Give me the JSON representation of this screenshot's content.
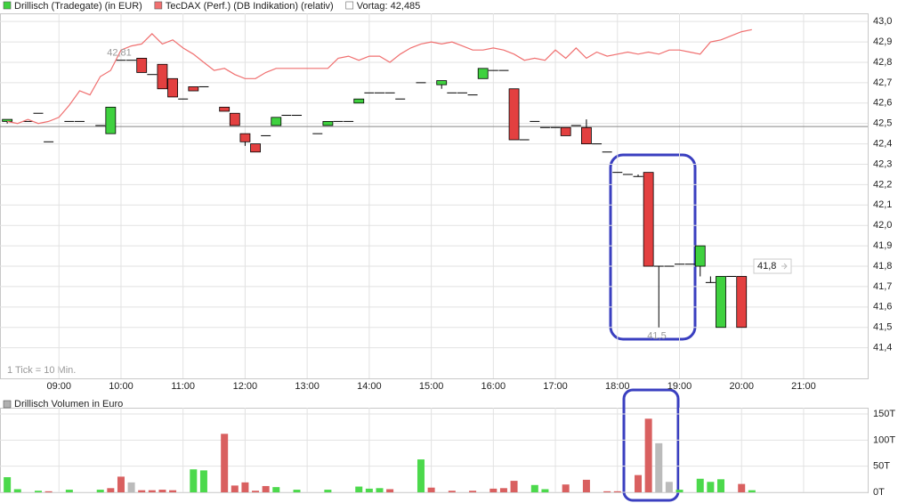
{
  "chart_data": [
    {
      "type": "candlestick",
      "note": "1 Tick = 10 Min.",
      "xlim": [
        483,
        1322
      ],
      "xticks": [
        {
          "value": 540,
          "label": "09:00"
        },
        {
          "value": 600,
          "label": "10:00"
        },
        {
          "value": 660,
          "label": "11:00"
        },
        {
          "value": 720,
          "label": "12:00"
        },
        {
          "value": 780,
          "label": "13:00"
        },
        {
          "value": 840,
          "label": "14:00"
        },
        {
          "value": 900,
          "label": "15:00"
        },
        {
          "value": 960,
          "label": "16:00"
        },
        {
          "value": 1020,
          "label": "17:00"
        },
        {
          "value": 1080,
          "label": "18:00"
        },
        {
          "value": 1140,
          "label": "19:00"
        },
        {
          "value": 1200,
          "label": "20:00"
        },
        {
          "value": 1260,
          "label": "21:00"
        }
      ],
      "ylim": [
        41.25,
        43.04
      ],
      "yticks": [
        {
          "value": 41.4,
          "label": "41,4"
        },
        {
          "value": 41.5,
          "label": "41,5"
        },
        {
          "value": 41.6,
          "label": "41,6"
        },
        {
          "value": 41.7,
          "label": "41,7"
        },
        {
          "value": 41.8,
          "label": "41,8"
        },
        {
          "value": 41.9,
          "label": "41,9"
        },
        {
          "value": 42.0,
          "label": "42,0"
        },
        {
          "value": 42.1,
          "label": "42,1"
        },
        {
          "value": 42.2,
          "label": "42,2"
        },
        {
          "value": 42.3,
          "label": "42,3"
        },
        {
          "value": 42.4,
          "label": "42,4"
        },
        {
          "value": 42.5,
          "label": "42,5"
        },
        {
          "value": 42.6,
          "label": "42,6"
        },
        {
          "value": 42.7,
          "label": "42,7"
        },
        {
          "value": 42.8,
          "label": "42,8"
        },
        {
          "value": 42.9,
          "label": "42,9"
        },
        {
          "value": 43.0,
          "label": "43,0"
        }
      ],
      "grid": true,
      "series": [
        {
          "name": "Drillisch (Tradegate) (in EUR)",
          "color": "#3fd13f",
          "up_color": "#3fd13f",
          "down_color": "#e34040",
          "x": [
            490,
            510,
            520,
            530,
            550,
            560,
            580,
            590,
            600,
            610,
            620,
            630,
            640,
            650,
            660,
            670,
            680,
            700,
            710,
            720,
            730,
            740,
            750,
            760,
            770,
            790,
            800,
            810,
            820,
            830,
            840,
            850,
            860,
            870,
            890,
            910,
            920,
            930,
            940,
            950,
            960,
            970,
            980,
            990,
            1000,
            1010,
            1020,
            1030,
            1040,
            1050,
            1060,
            1070,
            1080,
            1090,
            1100,
            1110,
            1120,
            1130,
            1140,
            1150,
            1160,
            1170,
            1180,
            1190,
            1200
          ],
          "open": [
            42.51,
            42.51,
            42.55,
            42.41,
            42.51,
            42.51,
            42.49,
            42.45,
            42.81,
            42.81,
            42.82,
            42.74,
            42.79,
            42.72,
            42.62,
            42.68,
            42.68,
            42.58,
            42.55,
            42.45,
            42.4,
            42.44,
            42.49,
            42.54,
            42.54,
            42.45,
            42.49,
            42.51,
            42.51,
            42.6,
            42.65,
            42.65,
            42.65,
            42.62,
            42.7,
            42.69,
            42.65,
            42.65,
            42.64,
            42.72,
            42.76,
            42.76,
            42.67,
            42.42,
            42.51,
            42.48,
            42.48,
            42.48,
            42.49,
            42.48,
            42.4,
            42.36,
            42.26,
            42.25,
            42.24,
            42.26,
            41.8,
            41.8,
            41.81,
            41.81,
            41.8,
            41.72,
            41.5,
            41.75,
            41.75
          ],
          "high": [
            42.52,
            42.51,
            42.55,
            42.41,
            42.51,
            42.51,
            42.49,
            42.58,
            42.81,
            42.81,
            42.82,
            42.74,
            42.79,
            42.72,
            42.62,
            42.68,
            42.68,
            42.58,
            42.55,
            42.45,
            42.4,
            42.44,
            42.53,
            42.54,
            42.54,
            42.45,
            42.51,
            42.51,
            42.51,
            42.62,
            42.65,
            42.65,
            42.65,
            42.62,
            42.7,
            42.71,
            42.65,
            42.65,
            42.64,
            42.77,
            42.76,
            42.76,
            42.67,
            42.42,
            42.51,
            42.48,
            42.48,
            42.48,
            42.49,
            42.52,
            42.4,
            42.36,
            42.26,
            42.25,
            42.25,
            42.26,
            41.8,
            41.8,
            41.81,
            41.81,
            41.9,
            41.75,
            41.75,
            41.75,
            41.75
          ],
          "low": [
            42.5,
            42.51,
            42.55,
            42.41,
            42.51,
            42.51,
            42.49,
            42.45,
            42.81,
            42.81,
            42.75,
            42.74,
            42.67,
            42.63,
            42.62,
            42.66,
            42.68,
            42.56,
            42.49,
            42.39,
            42.36,
            42.44,
            42.49,
            42.54,
            42.54,
            42.45,
            42.49,
            42.51,
            42.51,
            42.6,
            42.65,
            42.65,
            42.65,
            42.62,
            42.7,
            42.67,
            42.65,
            42.65,
            42.64,
            42.72,
            42.76,
            42.76,
            42.42,
            42.42,
            42.51,
            42.48,
            42.48,
            42.44,
            42.49,
            42.4,
            42.4,
            42.36,
            42.26,
            42.25,
            42.24,
            41.8,
            41.5,
            41.8,
            41.81,
            41.81,
            41.75,
            41.72,
            41.5,
            41.75,
            41.5
          ],
          "close": [
            42.52,
            42.51,
            42.55,
            42.41,
            42.51,
            42.51,
            42.49,
            42.58,
            42.81,
            42.81,
            42.75,
            42.74,
            42.67,
            42.63,
            42.62,
            42.66,
            42.68,
            42.56,
            42.49,
            42.41,
            42.36,
            42.44,
            42.53,
            42.54,
            42.54,
            42.45,
            42.51,
            42.51,
            42.51,
            42.62,
            42.65,
            42.65,
            42.65,
            42.62,
            42.7,
            42.71,
            42.65,
            42.65,
            42.64,
            42.77,
            42.76,
            42.76,
            42.42,
            42.42,
            42.51,
            42.48,
            42.48,
            42.44,
            42.49,
            42.4,
            42.4,
            42.36,
            42.26,
            42.25,
            42.24,
            41.8,
            41.8,
            41.8,
            41.81,
            41.81,
            41.9,
            41.72,
            41.75,
            41.75,
            41.5
          ]
        },
        {
          "name": "TecDAX (Perf.) (DB Indikation) (relativ)",
          "color": "#f07070",
          "type": "line",
          "x": [
            490,
            500,
            510,
            520,
            530,
            540,
            550,
            560,
            570,
            580,
            590,
            600,
            610,
            620,
            630,
            640,
            650,
            660,
            670,
            680,
            690,
            700,
            710,
            720,
            730,
            740,
            750,
            760,
            770,
            780,
            790,
            800,
            810,
            820,
            830,
            840,
            850,
            860,
            870,
            880,
            890,
            900,
            910,
            920,
            930,
            940,
            950,
            960,
            970,
            980,
            990,
            1000,
            1010,
            1020,
            1030,
            1040,
            1050,
            1060,
            1070,
            1080,
            1090,
            1100,
            1110,
            1120,
            1130,
            1140,
            1150,
            1160,
            1170,
            1180,
            1190,
            1200,
            1210
          ],
          "values": [
            42.51,
            42.5,
            42.52,
            42.5,
            42.51,
            42.53,
            42.59,
            42.66,
            42.64,
            42.73,
            42.76,
            42.86,
            42.88,
            42.89,
            42.94,
            42.89,
            42.91,
            42.87,
            42.84,
            42.8,
            42.76,
            42.77,
            42.74,
            42.72,
            42.72,
            42.75,
            42.77,
            42.77,
            42.77,
            42.77,
            42.77,
            42.77,
            42.82,
            42.83,
            42.81,
            42.83,
            42.83,
            42.8,
            42.84,
            42.87,
            42.89,
            42.9,
            42.89,
            42.9,
            42.88,
            42.86,
            42.86,
            42.87,
            42.86,
            42.84,
            42.81,
            42.82,
            42.81,
            42.86,
            42.82,
            42.87,
            42.82,
            42.85,
            42.83,
            42.84,
            42.85,
            42.84,
            42.85,
            42.84,
            42.86,
            42.86,
            42.85,
            42.84,
            42.9,
            42.91,
            42.93,
            42.95,
            42.96
          ]
        }
      ],
      "reference_line": {
        "value": 42.485,
        "label": "Vortag: 42,485",
        "color": "#888888"
      },
      "annotations": [
        {
          "value": 42.81,
          "label": "42,81"
        },
        {
          "value": 41.5,
          "label": "41,5"
        },
        {
          "value": 41.8,
          "label": "41,8"
        }
      ]
    },
    {
      "type": "bar",
      "title": "Drillisch Volumen in Euro",
      "title_color": "#b0b0b0",
      "xlim": [
        483,
        1322
      ],
      "ylim": [
        0,
        162
      ],
      "yticks": [
        {
          "value": 0,
          "label": "0T"
        },
        {
          "value": 50,
          "label": "50T"
        },
        {
          "value": 100,
          "label": "100T"
        },
        {
          "value": 150,
          "label": "150T"
        }
      ],
      "grid": true,
      "x": [
        490,
        500,
        520,
        530,
        550,
        580,
        590,
        600,
        610,
        620,
        630,
        640,
        650,
        670,
        680,
        700,
        710,
        720,
        730,
        740,
        750,
        770,
        800,
        830,
        840,
        850,
        860,
        890,
        900,
        920,
        940,
        960,
        970,
        980,
        1000,
        1010,
        1030,
        1050,
        1070,
        1080,
        1100,
        1110,
        1120,
        1130,
        1140,
        1160,
        1170,
        1180,
        1200,
        1210
      ],
      "values": [
        29,
        6,
        3,
        2,
        5,
        5,
        8,
        30,
        19,
        4,
        4,
        5,
        4,
        44,
        42,
        112,
        13,
        19,
        3,
        12,
        10,
        5,
        5,
        11,
        7,
        8,
        6,
        63,
        9,
        3,
        3,
        7,
        8,
        22,
        14,
        6,
        15,
        24,
        2,
        2,
        33,
        141,
        94,
        20,
        5,
        26,
        20,
        25,
        16,
        4
      ],
      "colors": [
        "#4cd94c",
        "#4cd94c",
        "#4cd94c",
        "#d96060",
        "#4cd94c",
        "#4cd94c",
        "#d96060",
        "#d96060",
        "#bbbbbb",
        "#d96060",
        "#d96060",
        "#d96060",
        "#d96060",
        "#4cd94c",
        "#4cd94c",
        "#d96060",
        "#d96060",
        "#d96060",
        "#d96060",
        "#d96060",
        "#4cd94c",
        "#4cd94c",
        "#4cd94c",
        "#4cd94c",
        "#4cd94c",
        "#4cd94c",
        "#d96060",
        "#4cd94c",
        "#d96060",
        "#d96060",
        "#d96060",
        "#d96060",
        "#d96060",
        "#d96060",
        "#4cd94c",
        "#4cd94c",
        "#d96060",
        "#d96060",
        "#d96060",
        "#d96060",
        "#d96060",
        "#d96060",
        "#bbbbbb",
        "#bbbbbb",
        "#4cd94c",
        "#4cd94c",
        "#4cd94c",
        "#4cd94c",
        "#d96060",
        "#4cd94c"
      ]
    }
  ]
}
